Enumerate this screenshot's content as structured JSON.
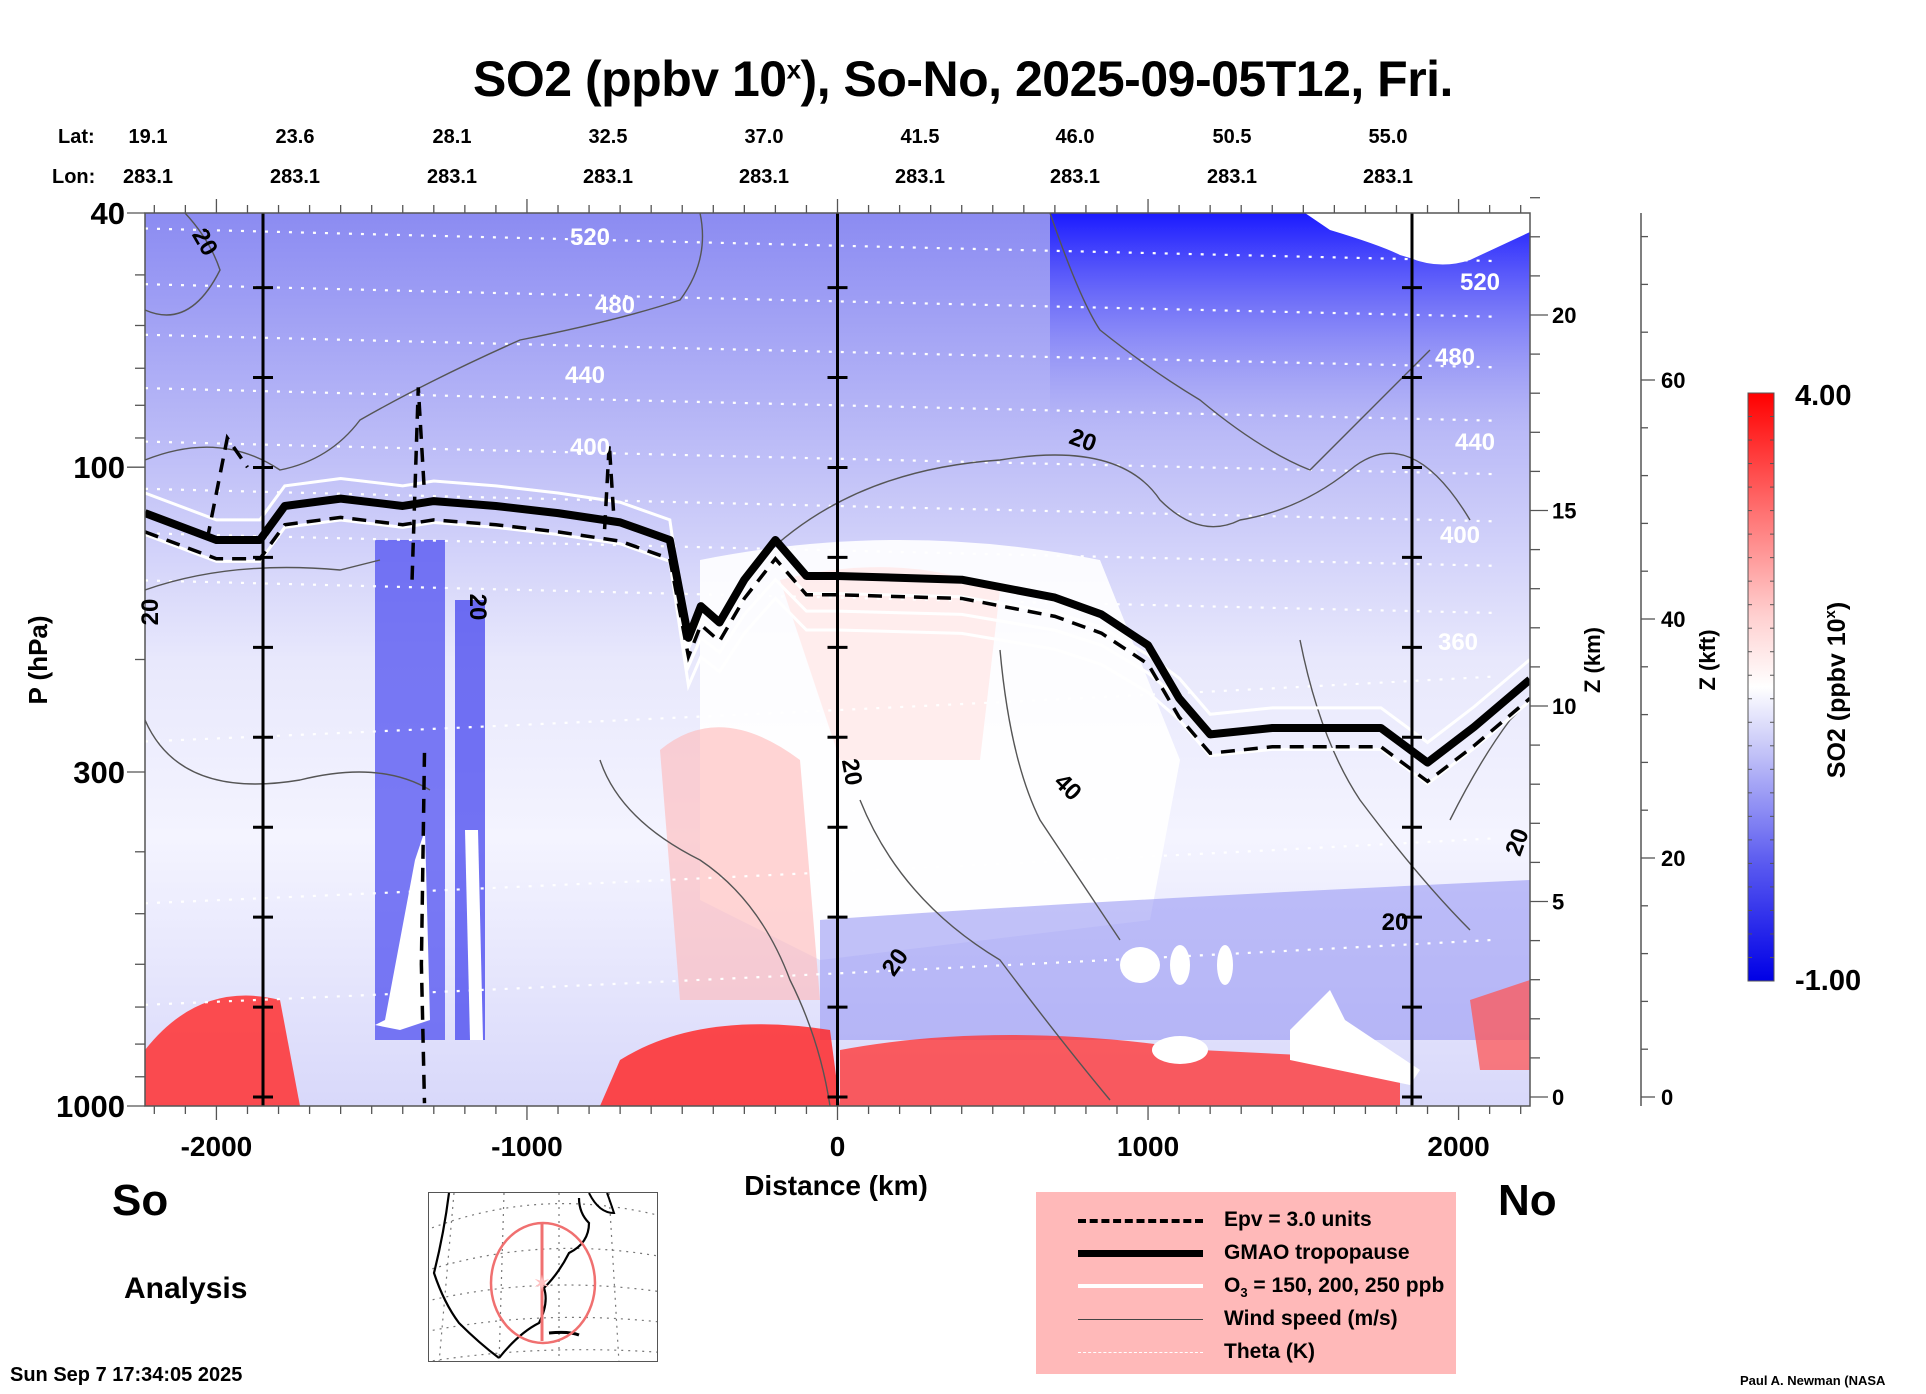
{
  "title": {
    "prefix": "SO2 (ppbv 10",
    "superscript": "x",
    "suffix": "), So-No, 2025-09-05T12, Fri."
  },
  "coordinates": {
    "lat_label": "Lat:",
    "lon_label": "Lon:",
    "lat": [
      "19.1",
      "23.6",
      "28.1",
      "32.5",
      "37.0",
      "41.5",
      "46.0",
      "50.5",
      "55.0"
    ],
    "lon": [
      "283.1",
      "283.1",
      "283.1",
      "283.1",
      "283.1",
      "283.1",
      "283.1",
      "283.1",
      "283.1"
    ]
  },
  "labels": {
    "south": "So",
    "north": "No",
    "analysis": "Analysis",
    "timestamp": "Sun Sep  7 17:34:05 2025",
    "credit": "Paul A. Newman (NASA"
  },
  "legend": {
    "items": [
      {
        "label": "Epv = 3.0 units",
        "style": "dashed-black"
      },
      {
        "label": "GMAO tropopause",
        "style": "thick-black"
      },
      {
        "label_prefix": "O",
        "label_sub": "3",
        "label_suffix": " = 150, 200, 250 ppb",
        "style": "white"
      },
      {
        "label": "Wind speed (m/s)",
        "style": "thin-gray"
      },
      {
        "label": "Theta (K)",
        "style": "dotted-white"
      }
    ]
  },
  "colors": {
    "so2_min": "#0000e6",
    "so2_mid": "#ffffff",
    "so2_max": "#ff0000",
    "legend_bg": "#ffb9b9",
    "map_track": "#f07070"
  },
  "chart_data": {
    "type": "heatmap",
    "title": "SO2 (ppbv 10^x), So-No, 2025-09-05T12, Fri.",
    "xlabel": "Distance (km)",
    "ylabel": "P (hPa)",
    "ylabel_right_1": "Z (km)",
    "ylabel_right_2": "Z (kft)",
    "xlim": [
      -2230,
      2230
    ],
    "ylim": [
      1000,
      40
    ],
    "yscale": "log",
    "x_ticks": [
      -2000,
      -1000,
      0,
      1000,
      2000
    ],
    "y_ticks": [
      40,
      100,
      300,
      1000
    ],
    "z_km_ticks": [
      0,
      5,
      10,
      15,
      20
    ],
    "z_kft_ticks": [
      0,
      20,
      40,
      60
    ],
    "vertical_markers_km": [
      -1850,
      0,
      1850
    ],
    "colorbar": {
      "label": "SO2 (ppbv 10^x)",
      "min": -1.0,
      "max": 4.0,
      "min_label": "-1.00",
      "max_label": "4.00"
    },
    "theta_labels_K": [
      "520",
      "480",
      "440",
      "400",
      "360"
    ],
    "wind_labels_ms": [
      "20",
      "40"
    ],
    "tropopause_hPa": [
      {
        "x": -2230,
        "p": 118
      },
      {
        "x": -2000,
        "p": 130
      },
      {
        "x": -1860,
        "p": 130
      },
      {
        "x": -1780,
        "p": 115
      },
      {
        "x": -1600,
        "p": 112
      },
      {
        "x": -1400,
        "p": 115
      },
      {
        "x": -1300,
        "p": 113
      },
      {
        "x": -1100,
        "p": 115
      },
      {
        "x": -900,
        "p": 118
      },
      {
        "x": -700,
        "p": 122
      },
      {
        "x": -540,
        "p": 130
      },
      {
        "x": -480,
        "p": 185
      },
      {
        "x": -440,
        "p": 165
      },
      {
        "x": -380,
        "p": 175
      },
      {
        "x": -300,
        "p": 150
      },
      {
        "x": -200,
        "p": 130
      },
      {
        "x": -100,
        "p": 148
      },
      {
        "x": 0,
        "p": 148
      },
      {
        "x": 400,
        "p": 150
      },
      {
        "x": 700,
        "p": 160
      },
      {
        "x": 850,
        "p": 170
      },
      {
        "x": 1000,
        "p": 190
      },
      {
        "x": 1100,
        "p": 230
      },
      {
        "x": 1200,
        "p": 262
      },
      {
        "x": 1400,
        "p": 256
      },
      {
        "x": 1750,
        "p": 256
      },
      {
        "x": 1900,
        "p": 290
      },
      {
        "x": 2050,
        "p": 255
      },
      {
        "x": 2230,
        "p": 215
      }
    ]
  }
}
